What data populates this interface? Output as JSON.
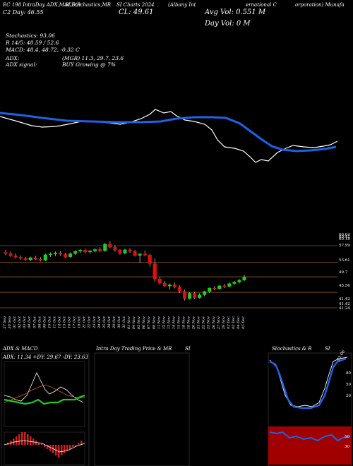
{
  "header": {
    "top_left_1": "EC 198 IntraDay ADX,MACD,B",
    "top_left_2": "SI,Stochastics,MR",
    "top_left_3": "SI Charts 2024",
    "top_left_4": "(Albany Int",
    "top_right_1": "ernational C",
    "top_right_2": "orporation) Munafa",
    "row2_left": "C2  Day: 46.55",
    "row2_close": "CL: 49.61",
    "avg_vol": "Avg Vol: 0.551 M",
    "day_vol": "Day Vol: 0  M"
  },
  "indicators": {
    "stoch": "Stochastics: 93.06",
    "r_line": "R 14/5: 48.59 / 52.6",
    "macd": "MACD: 48.4, 48.72, -0.32  C",
    "adx": "ADX:",
    "mgr": "(MGR) 11.3, 29.7, 23.6",
    "adx_signal": "ADX signal:",
    "buy": "BUY Growing @ 7%"
  },
  "panels": {
    "adx_title": "ADX  & MACD",
    "adx_values": "ADX: 11.34  +DY: 29.67 -DY: 23.63",
    "intraday_title": "Intra  Day Trading Price  & MR",
    "intraday_suffix": "SI",
    "stoch_title": "Stochastics & R",
    "stoch_suffix": "SI",
    "stoch_value": "93.06"
  },
  "chart_data": {
    "type": "candlestick",
    "title": "",
    "price_levels": [
      60.64,
      60.41,
      60.18,
      57.99,
      53.61,
      49.7,
      45.56,
      41.42,
      41.42,
      41.24
    ],
    "x_labels": [
      "27 Sep",
      "30 Sep",
      "01 Oct",
      "02 Oct",
      "03 Oct",
      "04 Oct",
      "07 Oct",
      "08 Oct",
      "09 Oct",
      "10 Oct",
      "11 Oct",
      "14 Oct",
      "15 Oct",
      "16 Oct",
      "17 Oct",
      "18 Oct",
      "21 Oct",
      "22 Oct",
      "23 Oct",
      "24 Oct",
      "25 Oct",
      "28 Oct",
      "29 Oct",
      "30 Oct",
      "31 Oct",
      "01 Nov",
      "04 Nov",
      "05 Nov",
      "06 Nov",
      "07 Nov",
      "08 Nov",
      "11 Nov",
      "12 Nov",
      "13 Nov",
      "14 Nov",
      "15 Nov",
      "18 Nov",
      "19 Nov",
      "20 Nov",
      "21 Nov",
      "22 Nov",
      "25 Nov",
      "26 Nov",
      "27 Nov",
      "29 Nov",
      "02 Dec",
      "03 Dec",
      "04 Dec",
      "05 Dec"
    ],
    "candles": [
      [
        56.2,
        56.9,
        55.4,
        55.9
      ],
      [
        55.9,
        56.4,
        55.0,
        55.3
      ],
      [
        55.3,
        55.9,
        54.6,
        54.9
      ],
      [
        54.9,
        55.4,
        54.2,
        54.6
      ],
      [
        54.6,
        55.0,
        54.0,
        54.2
      ],
      [
        54.2,
        55.1,
        53.9,
        54.8
      ],
      [
        54.8,
        55.3,
        54.1,
        54.4
      ],
      [
        54.4,
        54.9,
        53.8,
        54.1
      ],
      [
        54.1,
        55.8,
        53.9,
        55.6
      ],
      [
        55.6,
        56.2,
        55.0,
        55.8
      ],
      [
        55.8,
        56.5,
        55.2,
        56.1
      ],
      [
        56.1,
        56.6,
        55.3,
        55.7
      ],
      [
        55.7,
        56.1,
        54.7,
        55.0
      ],
      [
        55.0,
        56.2,
        54.8,
        55.9
      ],
      [
        55.9,
        56.8,
        55.5,
        56.5
      ],
      [
        56.5,
        57.1,
        56.0,
        56.8
      ],
      [
        56.8,
        57.2,
        55.9,
        56.3
      ],
      [
        56.3,
        56.9,
        55.8,
        56.6
      ],
      [
        56.6,
        57.3,
        56.2,
        57.0
      ],
      [
        57.0,
        57.6,
        56.3,
        56.6
      ],
      [
        56.6,
        58.8,
        56.4,
        58.4
      ],
      [
        58.4,
        59.2,
        57.3,
        57.6
      ],
      [
        57.6,
        58.1,
        56.4,
        56.8
      ],
      [
        56.8,
        57.1,
        55.6,
        56.0
      ],
      [
        56.0,
        57.2,
        55.7,
        56.9
      ],
      [
        56.9,
        57.3,
        56.1,
        56.5
      ],
      [
        56.5,
        56.9,
        55.1,
        55.4
      ],
      [
        55.4,
        56.0,
        53.4,
        55.8
      ],
      [
        55.8,
        56.7,
        55.2,
        55.5
      ],
      [
        55.5,
        55.8,
        52.4,
        53.2
      ],
      [
        53.2,
        54.6,
        48.4,
        49.1
      ],
      [
        49.1,
        49.7,
        47.7,
        48.0
      ],
      [
        48.0,
        48.6,
        46.9,
        47.2
      ],
      [
        47.2,
        47.9,
        46.3,
        47.6
      ],
      [
        47.6,
        48.2,
        46.6,
        47.0
      ],
      [
        47.0,
        47.4,
        45.4,
        45.8
      ],
      [
        45.8,
        46.3,
        43.4,
        43.9
      ],
      [
        43.9,
        45.6,
        43.6,
        45.3
      ],
      [
        45.3,
        45.7,
        43.8,
        44.1
      ],
      [
        44.1,
        45.3,
        43.9,
        44.9
      ],
      [
        44.9,
        46.0,
        44.5,
        45.8
      ],
      [
        45.8,
        46.9,
        45.4,
        46.7
      ],
      [
        46.7,
        47.2,
        46.1,
        46.5
      ],
      [
        46.5,
        47.5,
        46.3,
        47.3
      ],
      [
        47.3,
        47.8,
        46.7,
        47.1
      ],
      [
        47.1,
        48.2,
        46.9,
        47.9
      ],
      [
        47.9,
        48.6,
        47.5,
        48.3
      ],
      [
        48.3,
        49.1,
        47.9,
        48.8
      ],
      [
        48.8,
        50.3,
        48.5,
        49.61
      ]
    ]
  }
}
